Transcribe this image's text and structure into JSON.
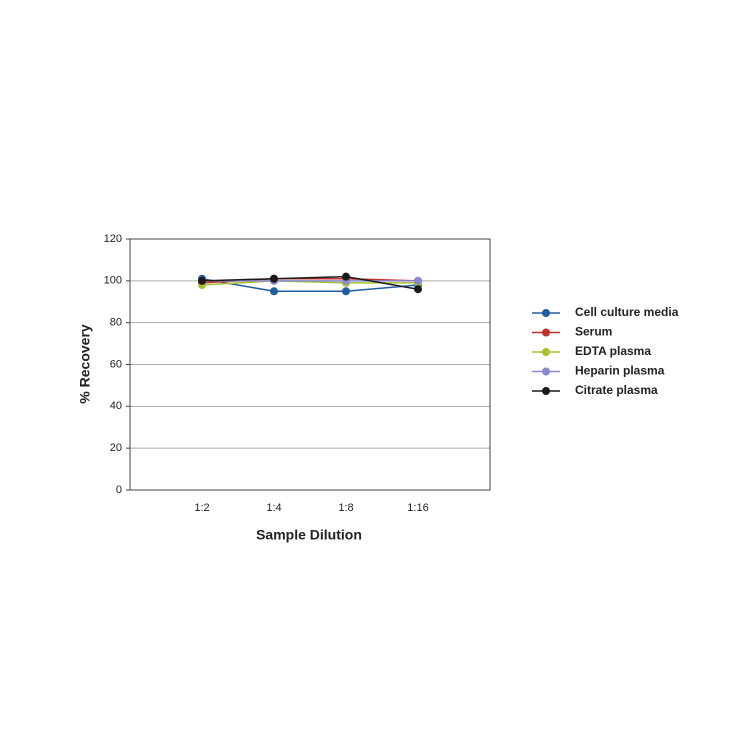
{
  "chart_data": {
    "type": "line",
    "x_label": "Sample Dilution",
    "y_label": "% Recovery",
    "categories": [
      "1:2",
      "1:4",
      "1:8",
      "1:16"
    ],
    "series": [
      {
        "name": "Cell culture media",
        "color": "#1f5fa0",
        "values": [
          101,
          95,
          95,
          98
        ]
      },
      {
        "name": "Serum",
        "color": "#c0302a",
        "values": [
          99,
          101,
          101,
          100
        ]
      },
      {
        "name": "EDTA plasma",
        "color": "#a8c030",
        "values": [
          98,
          100,
          99,
          99
        ]
      },
      {
        "name": "Heparin plasma",
        "color": "#8a8ad0",
        "values": [
          100,
          100,
          100,
          100
        ]
      },
      {
        "name": "Citrate plasma",
        "color": "#1a1a1a",
        "values": [
          100,
          101,
          102,
          96
        ]
      }
    ],
    "ylim": [
      0,
      120
    ],
    "yticks": [
      0,
      20,
      40,
      60,
      80,
      100,
      120
    ],
    "grid": true,
    "legend": "right"
  }
}
